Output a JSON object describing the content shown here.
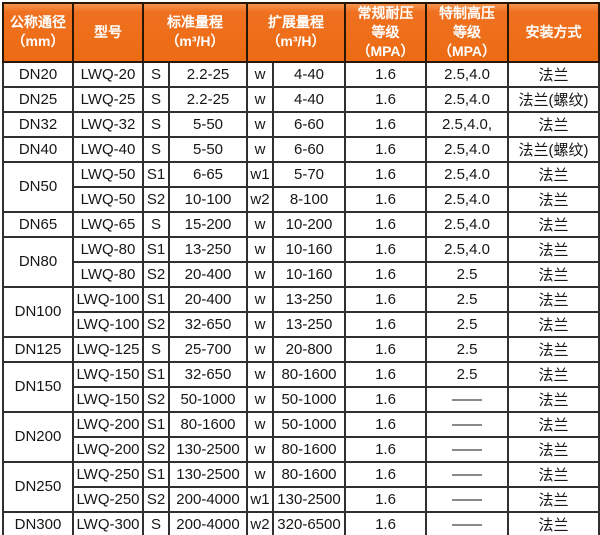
{
  "colors": {
    "header_bg": "#ef7120",
    "header_bg_light": "#f7964e",
    "header_text": "#ffffff",
    "border_dark": "#1c1c1c",
    "body_text": "#161616",
    "body_bg": "#ffffff"
  },
  "header": {
    "col_dn": "公称通径\n（mm）",
    "col_model": "型号",
    "col_std": "标准量程\n（m³/H）",
    "col_ext": "扩展量程\n（m³/H）",
    "col_pressure": "常规耐压\n等级（MPA）",
    "col_high": "特制高压\n等级（MPA）",
    "col_install": "安装方式"
  },
  "rows": [
    {
      "dn": "DN20",
      "dn_span": 1,
      "model": "LWQ-20",
      "s": "S",
      "std": "2.2-25",
      "w": "w",
      "ext": "4-40",
      "pressure": "1.6",
      "high": "2.5,4.0",
      "install": "法兰"
    },
    {
      "dn": "DN25",
      "dn_span": 1,
      "model": "LWQ-25",
      "s": "S",
      "std": "2.2-25",
      "w": "w",
      "ext": "4-40",
      "pressure": "1.6",
      "high": "2.5,4.0",
      "install": "法兰(螺纹)"
    },
    {
      "dn": "DN32",
      "dn_span": 1,
      "model": "LWQ-32",
      "s": "S",
      "std": "5-50",
      "w": "w",
      "ext": "6-60",
      "pressure": "1.6",
      "high": "2.5,4.0,",
      "install": "法兰"
    },
    {
      "dn": "DN40",
      "dn_span": 1,
      "model": "LWQ-40",
      "s": "S",
      "std": "5-50",
      "w": "w",
      "ext": "6-60",
      "pressure": "1.6",
      "high": "2.5,4.0",
      "install": "法兰(螺纹)"
    },
    {
      "dn": "DN50",
      "dn_span": 2,
      "model": "LWQ-50",
      "s": "S1",
      "std": "6-65",
      "w": "w1",
      "ext": "5-70",
      "pressure": "1.6",
      "high": "2.5,4.0",
      "install": "法兰"
    },
    {
      "model": "LWQ-50",
      "s": "S2",
      "std": "10-100",
      "w": "w2",
      "ext": "8-100",
      "pressure": "1.6",
      "high": "2.5,4.0",
      "install": "法兰"
    },
    {
      "dn": "DN65",
      "dn_span": 1,
      "model": "LWQ-65",
      "s": "S",
      "std": "15-200",
      "w": "w",
      "ext": "10-200",
      "pressure": "1.6",
      "high": "2.5,4.0",
      "install": "法兰"
    },
    {
      "dn": "DN80",
      "dn_span": 2,
      "model": "LWQ-80",
      "s": "S1",
      "std": "13-250",
      "w": "w",
      "ext": "10-160",
      "pressure": "1.6",
      "high": "2.5,4.0",
      "install": "法兰"
    },
    {
      "model": "LWQ-80",
      "s": "S2",
      "std": "20-400",
      "w": "w",
      "ext": "10-160",
      "pressure": "1.6",
      "high": "2.5",
      "install": "法兰"
    },
    {
      "dn": "DN100",
      "dn_span": 2,
      "model": "LWQ-100",
      "s": "S1",
      "std": "20-400",
      "w": "w",
      "ext": "13-250",
      "pressure": "1.6",
      "high": "2.5",
      "install": "法兰"
    },
    {
      "model": "LWQ-100",
      "s": "S2",
      "std": "32-650",
      "w": "w",
      "ext": "13-250",
      "pressure": "1.6",
      "high": "2.5",
      "install": "法兰"
    },
    {
      "dn": "DN125",
      "dn_span": 1,
      "model": "LWQ-125",
      "s": "S",
      "std": "25-700",
      "w": "w",
      "ext": "20-800",
      "pressure": "1.6",
      "high": "2.5",
      "install": "法兰"
    },
    {
      "dn": "DN150",
      "dn_span": 2,
      "model": "LWQ-150",
      "s": "S1",
      "std": "32-650",
      "w": "w",
      "ext": "80-1600",
      "pressure": "1.6",
      "high": "2.5",
      "install": "法兰"
    },
    {
      "model": "LWQ-150",
      "s": "S2",
      "std": "50-1000",
      "w": "w",
      "ext": "50-1000",
      "pressure": "1.6",
      "high": "——",
      "install": "法兰"
    },
    {
      "dn": "DN200",
      "dn_span": 2,
      "model": "LWQ-200",
      "s": "S1",
      "std": "80-1600",
      "w": "w",
      "ext": "50-1000",
      "pressure": "1.6",
      "high": "——",
      "install": "法兰"
    },
    {
      "model": "LWQ-200",
      "s": "S2",
      "std": "130-2500",
      "w": "w",
      "ext": "80-1600",
      "pressure": "1.6",
      "high": "——",
      "install": "法兰"
    },
    {
      "dn": "DN250",
      "dn_span": 2,
      "model": "LWQ-250",
      "s": "S1",
      "std": "130-2500",
      "w": "w",
      "ext": "80-1600",
      "pressure": "1.6",
      "high": "——",
      "install": "法兰"
    },
    {
      "model": "LWQ-250",
      "s": "S2",
      "std": "200-4000",
      "w": "w1",
      "ext": "130-2500",
      "pressure": "1.6",
      "high": "——",
      "install": "法兰"
    },
    {
      "dn": "DN300",
      "dn_span": 1,
      "model": "LWQ-300",
      "s": "S",
      "std": "200-4000",
      "w": "w2",
      "ext": "320-6500",
      "pressure": "1.6",
      "high": "——",
      "install": "法兰"
    }
  ]
}
